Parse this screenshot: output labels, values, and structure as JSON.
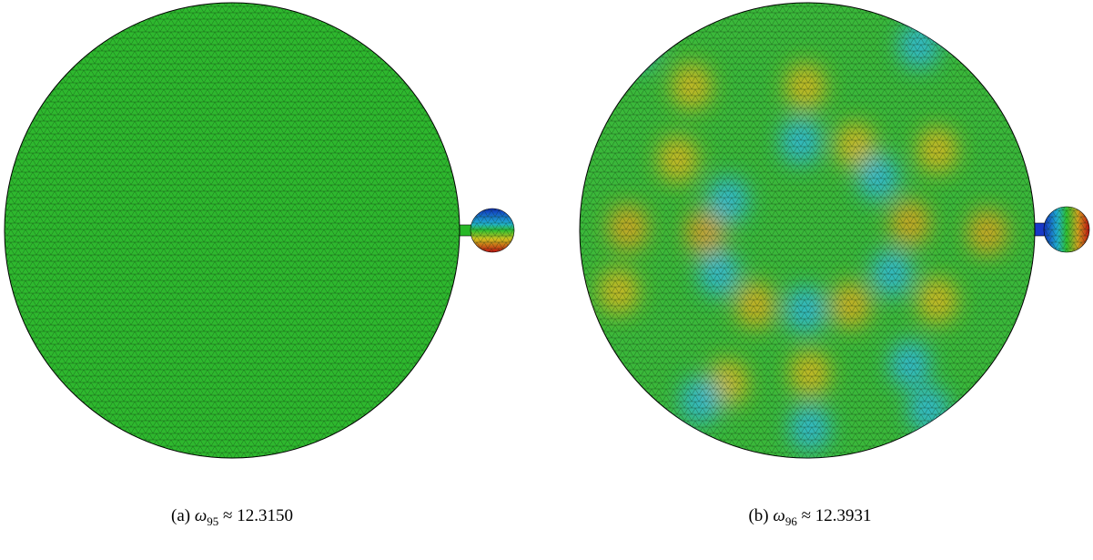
{
  "figures": [
    {
      "label": "(a)",
      "symbol": "ω",
      "subscript": "95",
      "relation": "≈",
      "value": "12.3150"
    },
    {
      "label": "(b)",
      "symbol": "ω",
      "subscript": "96",
      "relation": "≈",
      "value": "12.3931"
    }
  ]
}
